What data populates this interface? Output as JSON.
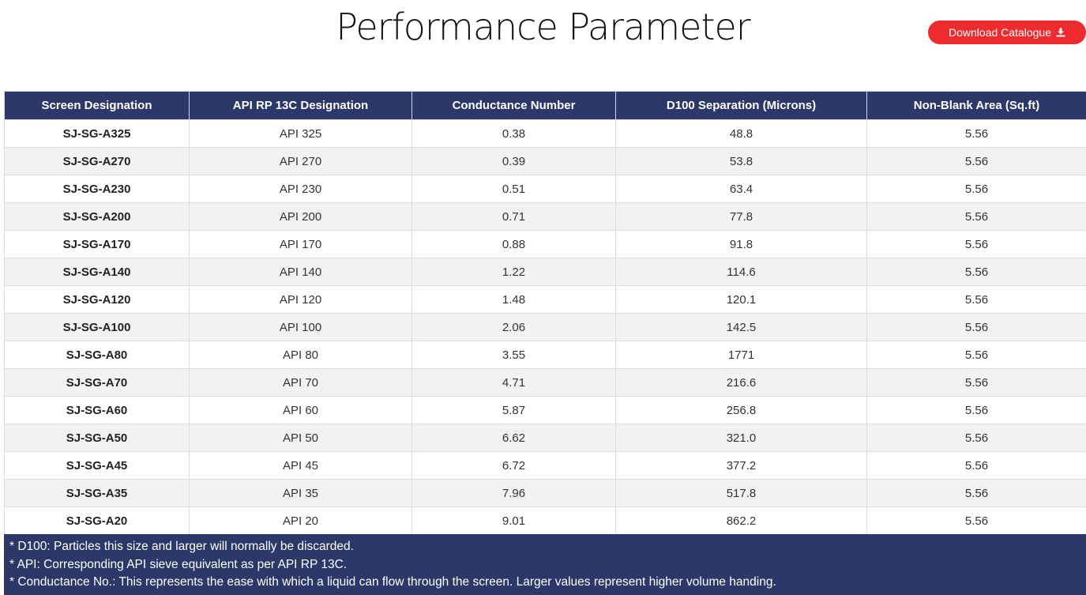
{
  "page_title": "Performance Parameter",
  "download_button": {
    "label": "Download Catalogue",
    "icon": "download-icon",
    "color": "#ee2b2f"
  },
  "table": {
    "header_color": "#2b3869",
    "columns": [
      "Screen Designation",
      "API RP 13C Designation",
      "Conductance Number",
      "D100 Separation (Microns)",
      "Non-Blank Area (Sq.ft)"
    ],
    "rows": [
      [
        "SJ-SG-A325",
        "API 325",
        "0.38",
        "48.8",
        "5.56"
      ],
      [
        "SJ-SG-A270",
        "API 270",
        "0.39",
        "53.8",
        "5.56"
      ],
      [
        "SJ-SG-A230",
        "API 230",
        "0.51",
        "63.4",
        "5.56"
      ],
      [
        "SJ-SG-A200",
        "API 200",
        "0.71",
        "77.8",
        "5.56"
      ],
      [
        "SJ-SG-A170",
        "API 170",
        "0.88",
        "91.8",
        "5.56"
      ],
      [
        "SJ-SG-A140",
        "API 140",
        "1.22",
        "114.6",
        "5.56"
      ],
      [
        "SJ-SG-A120",
        "API 120",
        "1.48",
        "120.1",
        "5.56"
      ],
      [
        "SJ-SG-A100",
        "API 100",
        "2.06",
        "142.5",
        "5.56"
      ],
      [
        "SJ-SG-A80",
        "API 80",
        "3.55",
        "1771",
        "5.56"
      ],
      [
        "SJ-SG-A70",
        "API 70",
        "4.71",
        "216.6",
        "5.56"
      ],
      [
        "SJ-SG-A60",
        "API 60",
        "5.87",
        "256.8",
        "5.56"
      ],
      [
        "SJ-SG-A50",
        "API 50",
        "6.62",
        "321.0",
        "5.56"
      ],
      [
        "SJ-SG-A45",
        "API 45",
        "6.72",
        "377.2",
        "5.56"
      ],
      [
        "SJ-SG-A35",
        "API 35",
        "7.96",
        "517.8",
        "5.56"
      ],
      [
        "SJ-SG-A20",
        "API 20",
        "9.01",
        "862.2",
        "5.56"
      ]
    ]
  },
  "notes": [
    "* D100: Particles this size and larger will normally be discarded.",
    "* API: Corresponding API sieve equivalent as per API RP 13C.",
    "* Conductance No.: This represents the ease with which a liquid can flow through the screen. Larger values represent higher volume handing."
  ]
}
